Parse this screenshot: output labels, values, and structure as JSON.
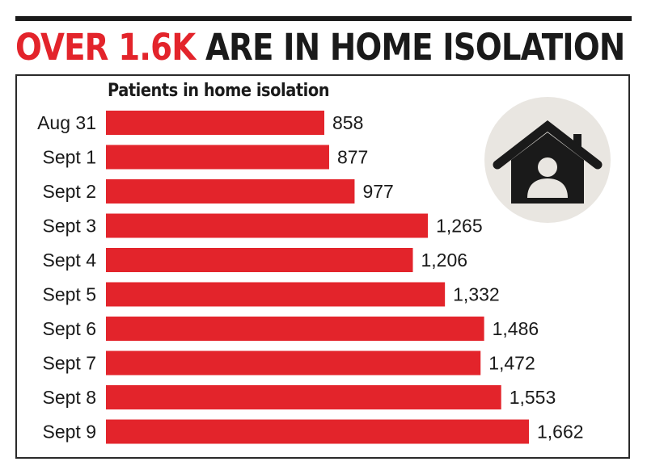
{
  "headline": {
    "accent": "OVER 1.6K",
    "rest": "ARE IN HOME ISOLATION"
  },
  "icon": "house-person-icon",
  "colors": {
    "bar": "#e3242b",
    "text": "#1a1a1a",
    "icon_circle": "#e9e6e1"
  },
  "chart_data": {
    "type": "bar",
    "orientation": "horizontal",
    "title": "Patients in home isolation",
    "categories": [
      "Aug 31",
      "Sept 1",
      "Sept 2",
      "Sept 3",
      "Sept 4",
      "Sept 5",
      "Sept 6",
      "Sept 7",
      "Sept 8",
      "Sept 9"
    ],
    "values": [
      858,
      877,
      977,
      1265,
      1206,
      1332,
      1486,
      1472,
      1553,
      1662
    ],
    "value_labels": [
      "858",
      "877",
      "977",
      "1,265",
      "1,206",
      "1,332",
      "1,486",
      "1,472",
      "1,553",
      "1,662"
    ],
    "xlabel": "",
    "ylabel": "",
    "grid": false
  }
}
